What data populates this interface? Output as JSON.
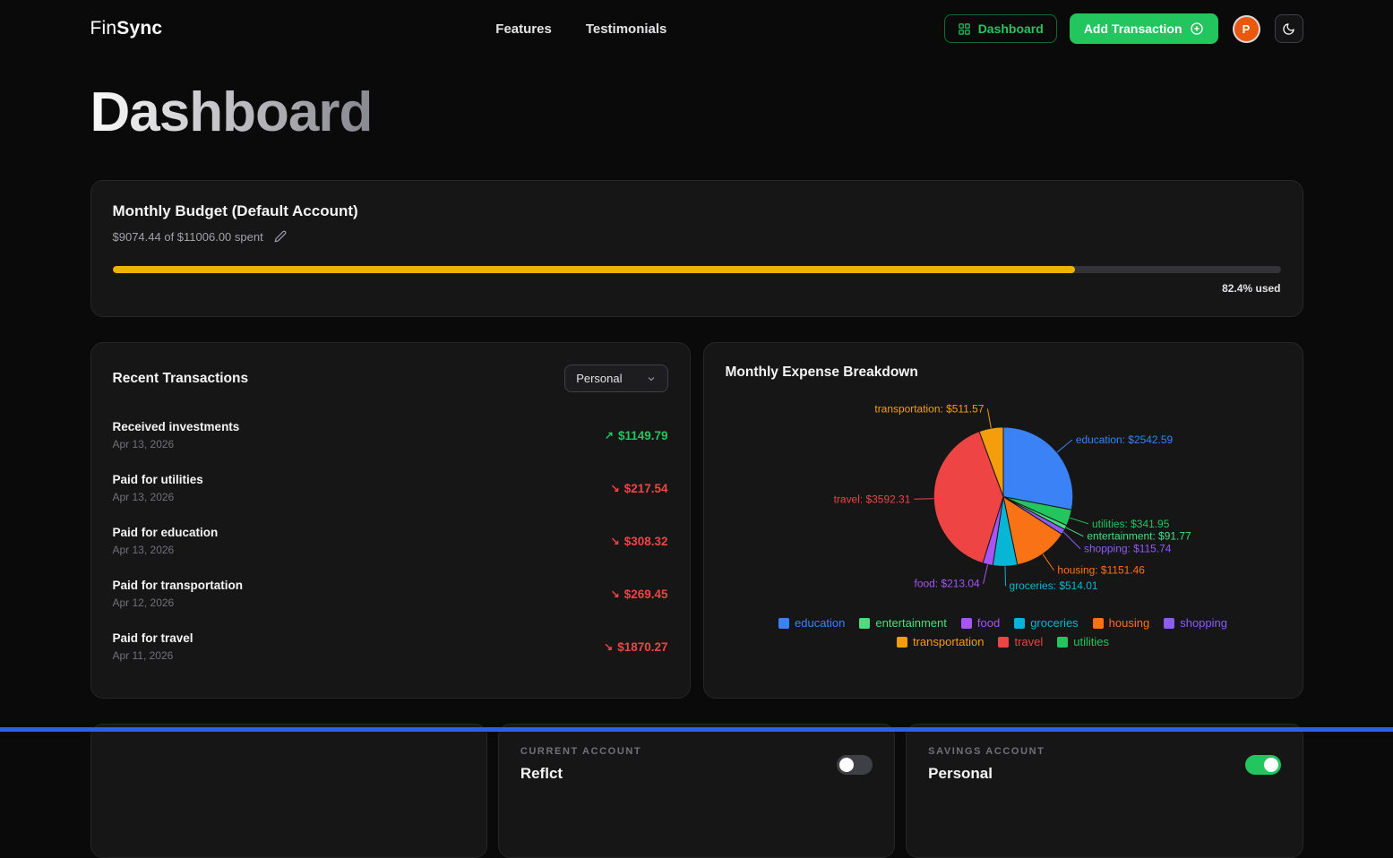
{
  "header": {
    "logo": {
      "part1": "Fin",
      "part2": "Sync"
    },
    "nav": [
      {
        "label": "Features"
      },
      {
        "label": "Testimonials"
      }
    ],
    "dashboard_button_label": "Dashboard",
    "add_transaction_label": "Add Transaction",
    "avatar_initial": "P"
  },
  "page_title": "Dashboard",
  "budget_card": {
    "title": "Monthly Budget (Default Account)",
    "spent_summary": "$9074.44 of $11006.00 spent",
    "percent_used": 82.4,
    "percent_used_label": "82.4% used",
    "bar_color": "#eab308"
  },
  "transactions_card": {
    "title": "Recent Transactions",
    "account_filter_value": "Personal",
    "items": [
      {
        "name": "Received investments",
        "date": "Apr 13, 2026",
        "amount": "$1149.79",
        "direction": "in"
      },
      {
        "name": "Paid for utilities",
        "date": "Apr 13, 2026",
        "amount": "$217.54",
        "direction": "out"
      },
      {
        "name": "Paid for education",
        "date": "Apr 13, 2026",
        "amount": "$308.32",
        "direction": "out"
      },
      {
        "name": "Paid for transportation",
        "date": "Apr 12, 2026",
        "amount": "$269.45",
        "direction": "out"
      },
      {
        "name": "Paid for travel",
        "date": "Apr 11, 2026",
        "amount": "$1870.27",
        "direction": "out"
      }
    ]
  },
  "expense_card": {
    "title": "Monthly Expense Breakdown"
  },
  "chart_data": {
    "type": "pie",
    "title": "Monthly Expense Breakdown",
    "total": 9074.44,
    "slices": [
      {
        "label": "education",
        "value": 2542.59,
        "color": "#3b82f6"
      },
      {
        "label": "utilities",
        "value": 341.95,
        "color": "#22c55e"
      },
      {
        "label": "entertainment",
        "value": 91.77,
        "color": "#4ade80"
      },
      {
        "label": "shopping",
        "value": 115.74,
        "color": "#8b5cf6"
      },
      {
        "label": "housing",
        "value": 1151.46,
        "color": "#f97316"
      },
      {
        "label": "groceries",
        "value": 514.01,
        "color": "#06b6d4"
      },
      {
        "label": "food",
        "value": 213.04,
        "color": "#a855f7"
      },
      {
        "label": "travel",
        "value": 3592.31,
        "color": "#ef4444"
      },
      {
        "label": "transportation",
        "value": 511.57,
        "color": "#f59e0b"
      }
    ],
    "legend_order": [
      "education",
      "entertainment",
      "food",
      "groceries",
      "housing",
      "shopping",
      "transportation",
      "travel",
      "utilities"
    ],
    "legend_position": "bottom",
    "label_format": "label: $value"
  },
  "bottom_cards": {
    "current": {
      "label": "CURRENT ACCOUNT",
      "name": "Reflct",
      "enabled": false
    },
    "savings": {
      "label": "SAVINGS ACCOUNT",
      "name": "Personal",
      "enabled": true
    }
  },
  "colors": {
    "income": "#22c55e",
    "expense": "#ef4444",
    "accent": "#22c55e",
    "footer_bar": "#2563eb"
  }
}
